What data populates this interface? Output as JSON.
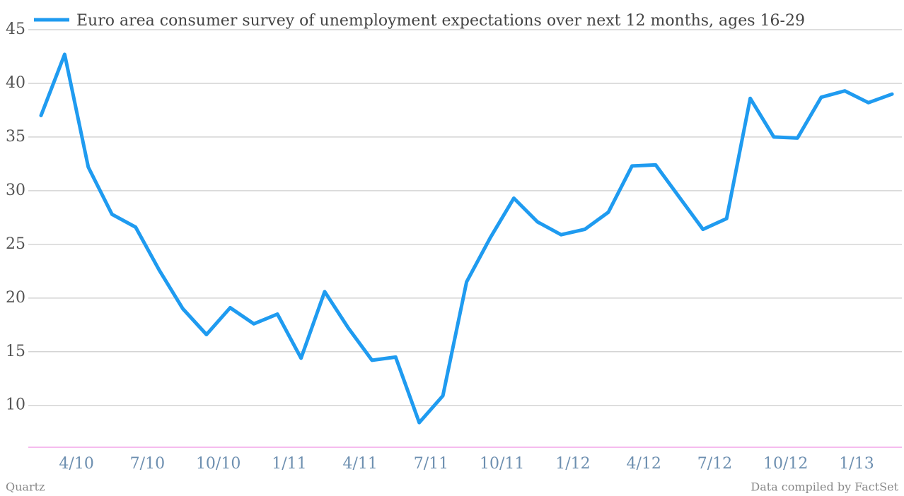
{
  "chart_data": {
    "type": "line",
    "title": "Euro area consumer survey of unemployment expectations over next 12 months, ages 16-29",
    "categories": [
      null,
      null,
      "4/10",
      null,
      null,
      "7/10",
      null,
      null,
      "10/10",
      null,
      null,
      "1/11",
      null,
      null,
      "4/11",
      null,
      null,
      "7/11",
      null,
      null,
      "10/11",
      null,
      null,
      "1/12",
      null,
      null,
      "4/12",
      null,
      null,
      "7/12",
      null,
      null,
      "10/12",
      null,
      null,
      "1/13",
      null
    ],
    "series": [
      {
        "name": "Euro area consumer survey of unemployment expectations over next 12 months, ages 16-29",
        "color": "#1f9bf0",
        "values": [
          37.0,
          42.7,
          32.2,
          27.8,
          26.6,
          22.6,
          19.0,
          16.6,
          19.1,
          17.6,
          18.5,
          14.4,
          20.6,
          17.2,
          14.2,
          14.5,
          8.4,
          10.9,
          21.5,
          25.6,
          29.3,
          27.1,
          25.9,
          26.4,
          28.0,
          32.3,
          32.4,
          29.4,
          26.4,
          27.4,
          38.6,
          35.0,
          34.9,
          38.7,
          39.3,
          38.2,
          39.0
        ]
      }
    ],
    "ylim": [
      6.1,
      45
    ],
    "yticks": [
      10,
      15,
      20,
      25,
      30,
      35,
      40,
      45
    ],
    "grid": true,
    "source_left": "Quartz",
    "source_right": "Data compiled by FactSet"
  }
}
